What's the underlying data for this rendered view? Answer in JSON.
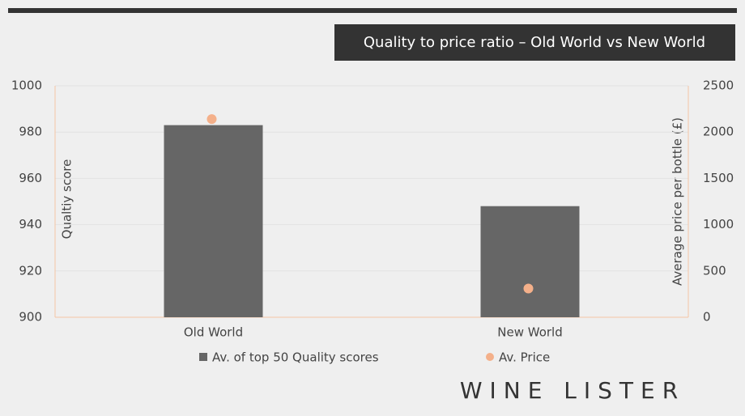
{
  "chart_data": {
    "type": "bar",
    "title": "Quality to price ratio – Old World vs New World",
    "categories": [
      "Old World",
      "New World"
    ],
    "series": [
      {
        "name": "Av. of top 50 Quality scores",
        "color": "#666666",
        "type": "bar",
        "values": [
          983,
          948
        ]
      },
      {
        "name": "Av. Price",
        "color": "#f4b08a",
        "type": "scatter",
        "axis": "y2",
        "values": [
          2140,
          310
        ]
      }
    ],
    "ylabel": "Qualtiy score",
    "y2label": "Average price per bottle (£)",
    "ylim": [
      900,
      1000
    ],
    "yticks": [
      900,
      920,
      940,
      960,
      980,
      1000
    ],
    "y2lim": [
      0,
      2500
    ],
    "y2ticks": [
      0,
      500,
      1000,
      1500,
      2000,
      2500
    ],
    "grid": true,
    "legend": "bottom",
    "logo": "WINE LISTER"
  }
}
